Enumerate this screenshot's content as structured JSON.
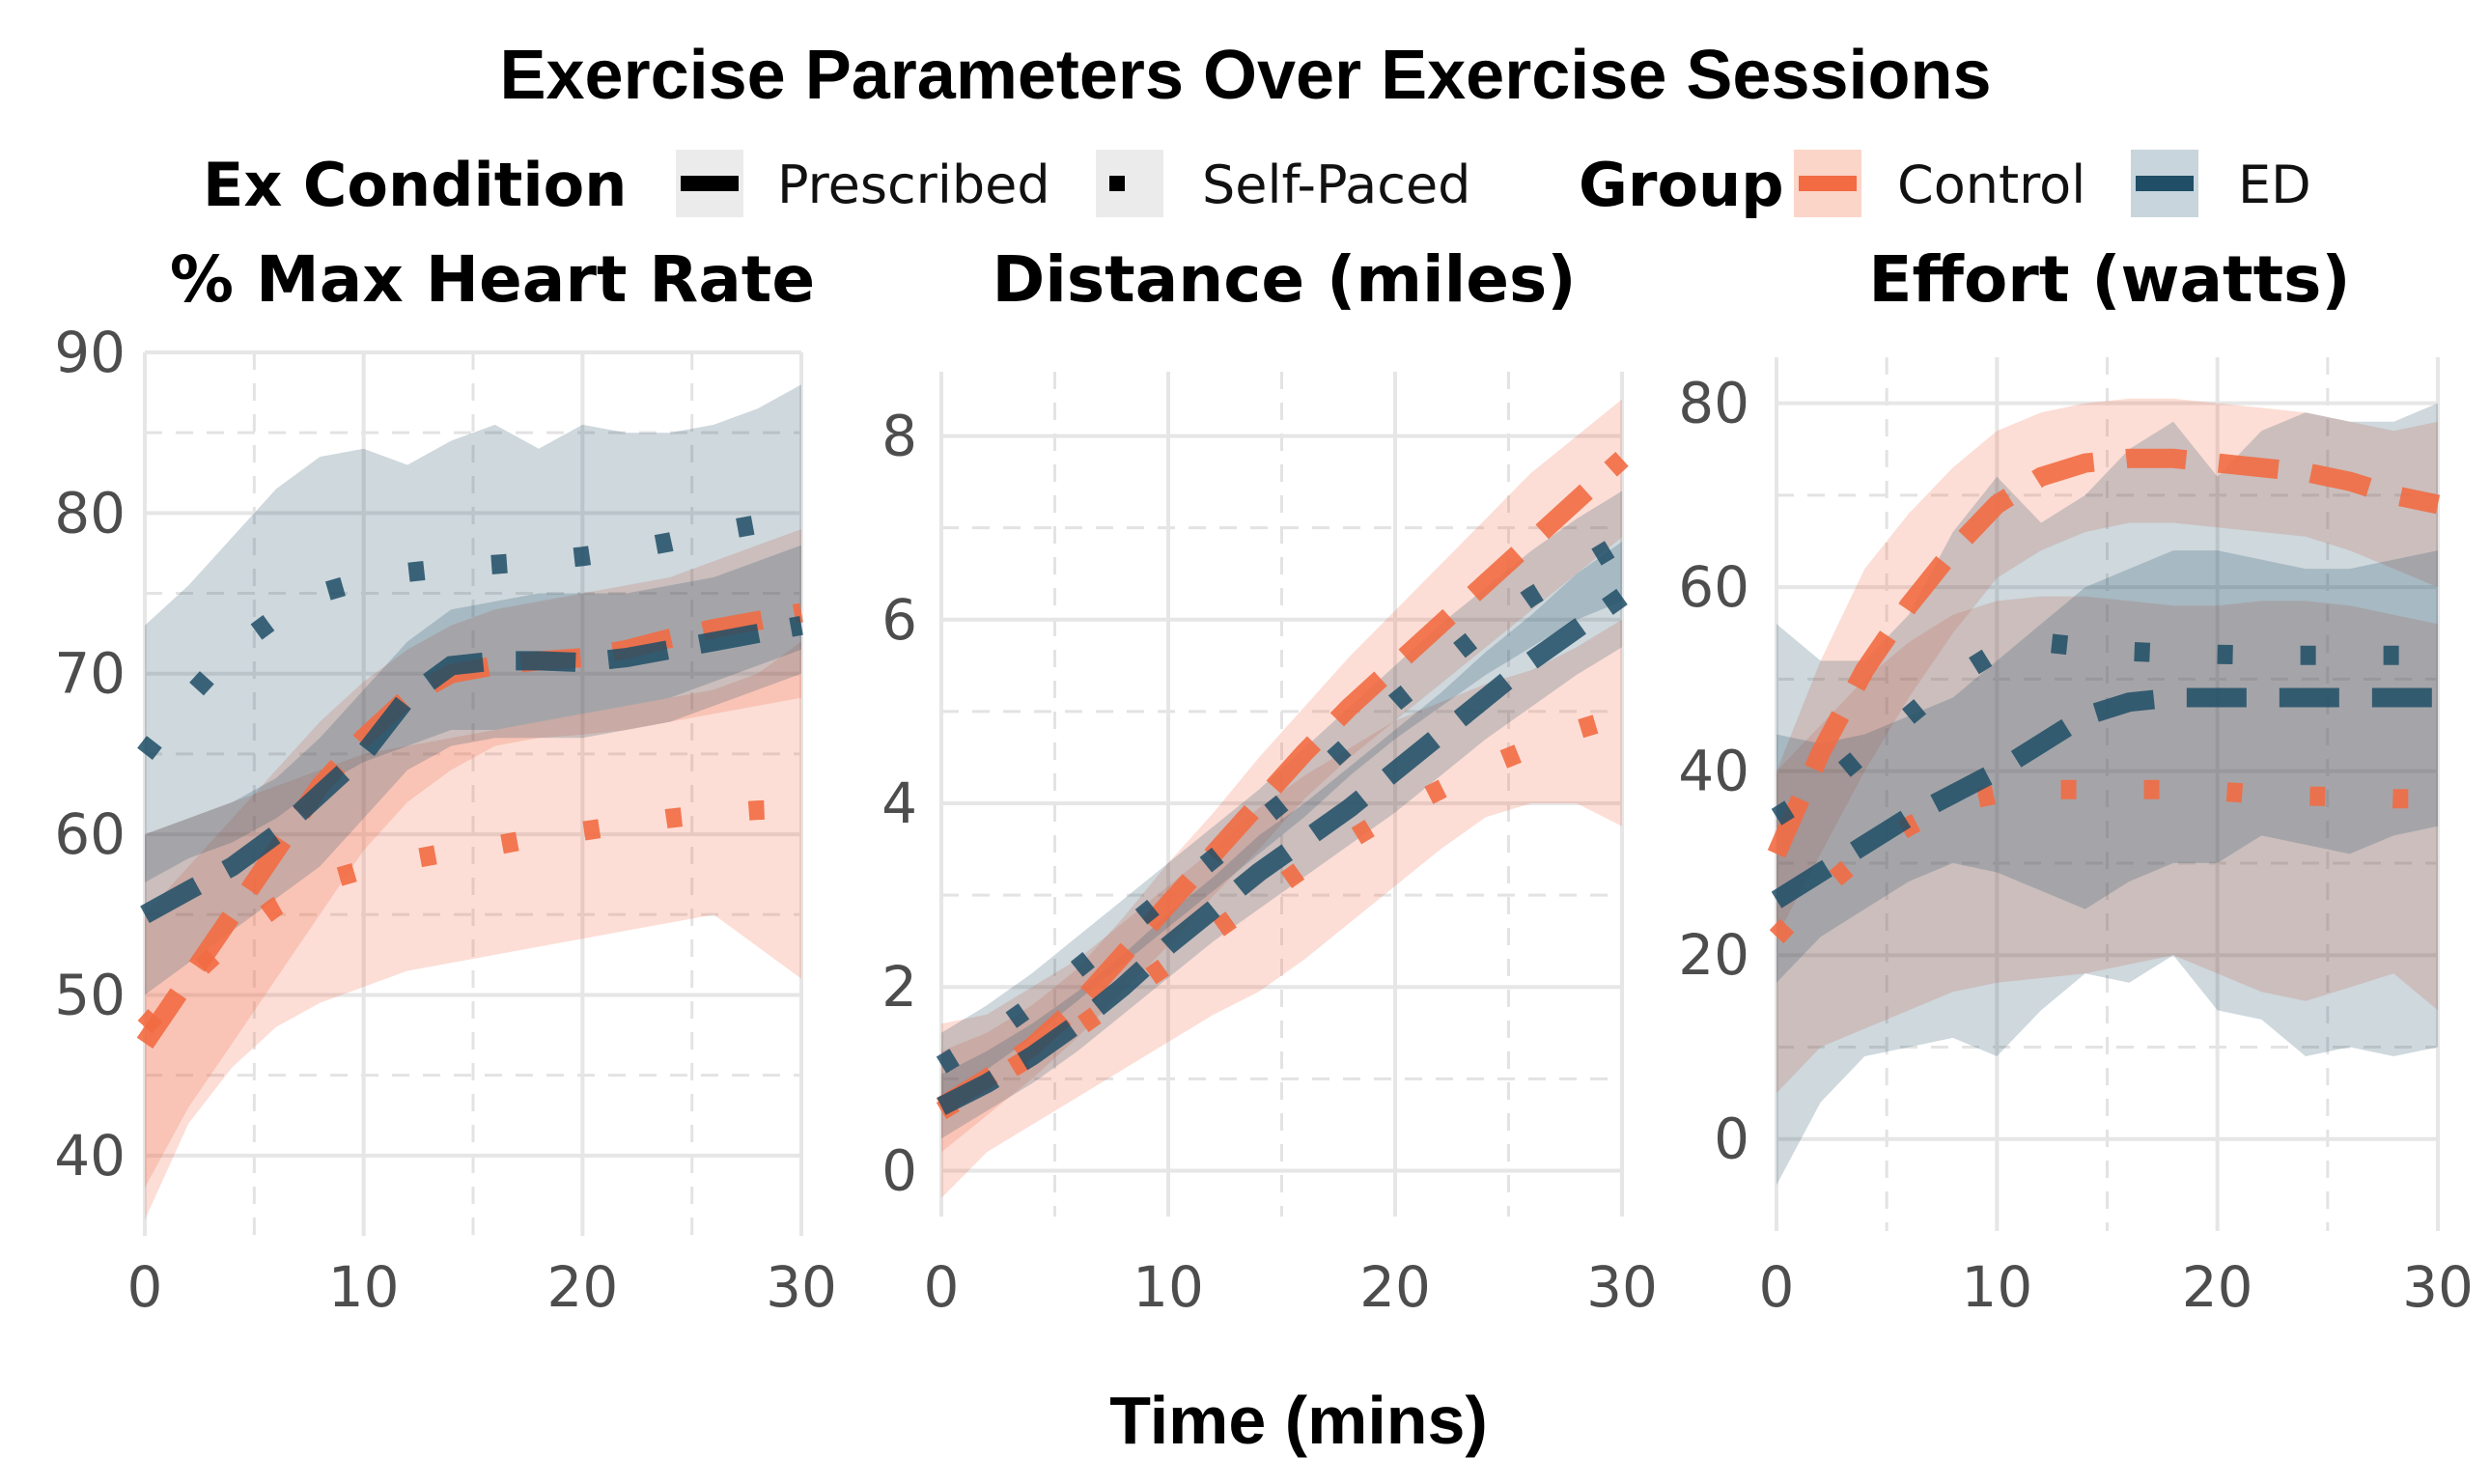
{
  "chart_data": {
    "type": "line",
    "title": "Exercise Parameters Over Exercise Sessions",
    "xlabel": "Time (mins)",
    "colors": {
      "Control": "#f26b43",
      "ED": "#1f4e66"
    },
    "legend": {
      "position": "top",
      "condition_title": "Ex Condition",
      "conditions": [
        "Prescribed",
        "Self-Paced"
      ],
      "group_title": "Group",
      "groups": [
        "Control",
        "ED"
      ]
    },
    "grid": true,
    "panels": [
      {
        "title": "% Max Heart Rate",
        "xlim": [
          0,
          30
        ],
        "ylim": [
          35,
          90
        ],
        "xticks": [
          0,
          10,
          20,
          30
        ],
        "yticks": [
          40,
          50,
          60,
          70,
          80,
          90
        ],
        "series": [
          {
            "group": "Control",
            "condition": "Prescribed",
            "x": [
              0,
              2,
              4,
              6,
              8,
              10,
              12,
              14,
              16,
              18,
              20,
              22,
              24,
              26,
              28,
              30
            ],
            "y": [
              47,
              51,
              55,
              59,
              63,
              66,
              68.5,
              70,
              70.5,
              70.8,
              71,
              71.5,
              72.2,
              72.8,
              73.3,
              73.8
            ],
            "lower": [
              38,
              43,
              47,
              51,
              55,
              59,
              62,
              64,
              65.5,
              66,
              66.2,
              66.5,
              67,
              67.5,
              68,
              68.5
            ],
            "upper": [
              55,
              58,
              61,
              64,
              67,
              69.5,
              71.5,
              73,
              74,
              74.5,
              75,
              75.5,
              76,
              77,
              78,
              79
            ]
          },
          {
            "group": "Control",
            "condition": "Self-Paced",
            "x": [
              0,
              2,
              4,
              6,
              8,
              10,
              12,
              14,
              16,
              18,
              20,
              22,
              24,
              26,
              28,
              30
            ],
            "y": [
              48,
              51,
              53.5,
              55.5,
              57,
              57.8,
              58.4,
              58.9,
              59.3,
              59.8,
              60.2,
              60.6,
              61,
              61.3,
              61.5,
              61.6
            ],
            "lower": [
              36,
              42,
              45.5,
              48,
              49.5,
              50.5,
              51.5,
              52,
              52.5,
              53,
              53.5,
              54,
              54.5,
              55,
              53,
              51
            ],
            "upper": [
              60,
              61,
              62,
              63,
              64,
              65,
              65.5,
              66,
              66.5,
              67,
              67.5,
              68,
              68.5,
              69,
              70,
              72
            ]
          },
          {
            "group": "ED",
            "condition": "Prescribed",
            "x": [
              0,
              2,
              4,
              6,
              8,
              10,
              12,
              14,
              16,
              18,
              20,
              22,
              24,
              26,
              28,
              30
            ],
            "y": [
              55,
              56.5,
              58,
              60,
              62.5,
              65,
              68.5,
              70.5,
              70.8,
              70.8,
              70.7,
              71,
              71.5,
              72,
              72.5,
              73
            ],
            "lower": [
              50,
              52,
              54,
              56,
              58,
              61,
              64,
              65.5,
              66,
              66,
              66,
              66.5,
              67,
              68,
              69,
              70
            ],
            "upper": [
              60,
              61,
              62,
              63.5,
              66,
              69,
              72,
              74,
              74.5,
              75,
              75,
              75,
              75.5,
              76,
              77,
              78
            ]
          },
          {
            "group": "ED",
            "condition": "Self-Paced",
            "x": [
              0,
              2,
              4,
              6,
              8,
              10,
              12,
              14,
              16,
              18,
              20,
              22,
              24,
              26,
              28,
              30
            ],
            "y": [
              65,
              68.5,
              71.5,
              73.5,
              75,
              75.8,
              76.3,
              76.6,
              76.8,
              77,
              77.3,
              77.7,
              78.2,
              78.8,
              79.3,
              79.8
            ],
            "lower": [
              57,
              58.5,
              59.5,
              61,
              63,
              64.5,
              65.5,
              66.5,
              66.5,
              67,
              67.5,
              68,
              68.5,
              69.5,
              70.5,
              71.5
            ],
            "upper": [
              73,
              75.5,
              78.5,
              81.5,
              83.5,
              84,
              83,
              84.5,
              85.5,
              84,
              85.5,
              85,
              85,
              85.5,
              86.5,
              88
            ]
          }
        ]
      },
      {
        "title": "Distance (miles)",
        "xlim": [
          0,
          30
        ],
        "ylim": [
          -0.5,
          8.7
        ],
        "xticks": [
          0,
          10,
          20,
          30
        ],
        "yticks": [
          0,
          2,
          4,
          6,
          8
        ],
        "series": [
          {
            "group": "Control",
            "condition": "Prescribed",
            "x": [
              0,
              2,
              4,
              6,
              8,
              10,
              12,
              14,
              16,
              18,
              20,
              22,
              24,
              26,
              28,
              30
            ],
            "y": [
              0.7,
              1.0,
              1.35,
              1.8,
              2.35,
              2.9,
              3.45,
              4.0,
              4.55,
              5.05,
              5.5,
              5.95,
              6.4,
              6.85,
              7.3,
              7.75
            ],
            "lower": [
              0.2,
              0.6,
              1.0,
              1.45,
              1.95,
              2.45,
              3.0,
              3.5,
              4.05,
              4.5,
              4.9,
              5.3,
              5.7,
              6.1,
              6.5,
              6.9
            ],
            "upper": [
              1.3,
              1.5,
              1.8,
              2.2,
              2.75,
              3.35,
              3.9,
              4.5,
              5.05,
              5.6,
              6.1,
              6.6,
              7.1,
              7.6,
              8.0,
              8.4
            ]
          },
          {
            "group": "Control",
            "condition": "Self-Paced",
            "x": [
              0,
              2,
              4,
              6,
              8,
              10,
              12,
              14,
              16,
              18,
              20,
              22,
              24,
              26,
              28,
              30
            ],
            "y": [
              0.65,
              0.95,
              1.25,
              1.55,
              1.9,
              2.25,
              2.6,
              2.95,
              3.3,
              3.6,
              3.9,
              4.15,
              4.4,
              4.6,
              4.8,
              4.95
            ],
            "lower": [
              -0.3,
              0.2,
              0.5,
              0.8,
              1.1,
              1.4,
              1.7,
              1.95,
              2.3,
              2.7,
              3.1,
              3.5,
              3.85,
              4.0,
              4.0,
              3.75
            ],
            "upper": [
              1.6,
              1.7,
              2.0,
              2.3,
              2.7,
              3.1,
              3.5,
              3.95,
              4.3,
              4.6,
              4.9,
              5.1,
              5.3,
              5.45,
              5.7,
              6.0
            ]
          },
          {
            "group": "ED",
            "condition": "Prescribed",
            "x": [
              0,
              2,
              4,
              6,
              8,
              10,
              12,
              14,
              16,
              18,
              20,
              22,
              24,
              26,
              28,
              30
            ],
            "y": [
              0.7,
              0.95,
              1.25,
              1.6,
              2.0,
              2.45,
              2.85,
              3.25,
              3.6,
              3.95,
              4.35,
              4.75,
              5.15,
              5.55,
              5.9,
              6.25
            ],
            "lower": [
              0.35,
              0.65,
              0.95,
              1.3,
              1.7,
              2.1,
              2.5,
              2.85,
              3.2,
              3.55,
              3.9,
              4.3,
              4.7,
              5.05,
              5.4,
              5.7
            ],
            "upper": [
              1.05,
              1.3,
              1.6,
              1.95,
              2.35,
              2.8,
              3.2,
              3.65,
              4.0,
              4.4,
              4.8,
              5.2,
              5.65,
              6.05,
              6.5,
              6.85
            ]
          },
          {
            "group": "ED",
            "condition": "Self-Paced",
            "x": [
              0,
              2,
              4,
              6,
              8,
              10,
              12,
              14,
              16,
              18,
              20,
              22,
              24,
              26,
              28,
              30
            ],
            "y": [
              1.15,
              1.45,
              1.8,
              2.2,
              2.6,
              3.0,
              3.4,
              3.8,
              4.2,
              4.65,
              5.1,
              5.5,
              5.9,
              6.25,
              6.55,
              6.85
            ],
            "lower": [
              0.8,
              1.1,
              1.45,
              1.85,
              2.25,
              2.65,
              3.05,
              3.45,
              3.85,
              4.3,
              4.7,
              5.05,
              5.4,
              5.7,
              6.0,
              6.2
            ],
            "upper": [
              1.5,
              1.8,
              2.15,
              2.55,
              2.95,
              3.35,
              3.75,
              4.15,
              4.6,
              5.05,
              5.5,
              5.95,
              6.35,
              6.75,
              7.1,
              7.4
            ]
          }
        ]
      },
      {
        "title": "Effort (watts)",
        "xlim": [
          0,
          30
        ],
        "ylim": [
          -10,
          85
        ],
        "xticks": [
          0,
          10,
          20,
          30
        ],
        "yticks": [
          0,
          20,
          40,
          60,
          80
        ],
        "series": [
          {
            "group": "Control",
            "condition": "Prescribed",
            "x": [
              0,
              2,
              4,
              6,
              8,
              10,
              12,
              14,
              16,
              18,
              20,
              22,
              24,
              26,
              28,
              30
            ],
            "y": [
              31,
              42,
              51,
              58,
              64,
              69,
              72,
              73.5,
              74,
              74,
              73.5,
              73,
              72.5,
              71.5,
              70,
              69
            ],
            "lower": [
              22,
              31,
              40,
              48,
              55,
              61,
              64,
              66,
              67,
              67,
              66.5,
              66,
              65.5,
              64,
              62,
              60
            ],
            "upper": [
              40,
              52,
              62,
              68,
              73,
              77,
              79,
              80,
              80.5,
              80.5,
              80,
              79.5,
              79,
              78,
              77,
              78
            ]
          },
          {
            "group": "Control",
            "condition": "Self-Paced",
            "x": [
              0,
              2,
              4,
              6,
              8,
              10,
              12,
              14,
              16,
              18,
              20,
              22,
              24,
              26,
              28,
              30
            ],
            "y": [
              22,
              27,
              31,
              34,
              36.5,
              37.5,
              38,
              38,
              38,
              38,
              37.8,
              37.5,
              37.3,
              37.2,
              37,
              37
            ],
            "lower": [
              5,
              10,
              12,
              14,
              16,
              17,
              17.5,
              18,
              19,
              20,
              18,
              16,
              15,
              16.5,
              18,
              14
            ],
            "upper": [
              40,
              45,
              50,
              54,
              57,
              58.5,
              59,
              59,
              58.5,
              58,
              58,
              58.5,
              58.5,
              58,
              57,
              56
            ]
          },
          {
            "group": "ED",
            "condition": "Prescribed",
            "x": [
              0,
              2,
              4,
              6,
              8,
              10,
              12,
              14,
              16,
              18,
              20,
              22,
              24,
              26,
              28,
              30
            ],
            "y": [
              26,
              29,
              32,
              35,
              37.5,
              40,
              43,
              46,
              47.5,
              48,
              48,
              48,
              48,
              48,
              48,
              48
            ],
            "lower": [
              17,
              22,
              25,
              28,
              30,
              29,
              27,
              25,
              28,
              30,
              30,
              33,
              32,
              31,
              33,
              34
            ],
            "upper": [
              44,
              43,
              44,
              46,
              48,
              52,
              56,
              60,
              62,
              64,
              64,
              63,
              62,
              62,
              63,
              64
            ]
          },
          {
            "group": "ED",
            "condition": "Self-Paced",
            "x": [
              0,
              2,
              4,
              6,
              8,
              10,
              12,
              14,
              16,
              18,
              20,
              22,
              24,
              26,
              28,
              30
            ],
            "y": [
              35,
              38,
              42,
              46,
              50,
              53,
              54,
              53.5,
              53,
              52.8,
              52.7,
              52.6,
              52.6,
              52.6,
              52.6,
              52.6
            ],
            "lower": [
              -5,
              4,
              9,
              10,
              11,
              9,
              14,
              18,
              17,
              20,
              14,
              13,
              9,
              10,
              9,
              10
            ],
            "upper": [
              56,
              52,
              52,
              57,
              66,
              72,
              67,
              70,
              75,
              78,
              72,
              77,
              79,
              78,
              78,
              80
            ]
          }
        ]
      }
    ]
  }
}
